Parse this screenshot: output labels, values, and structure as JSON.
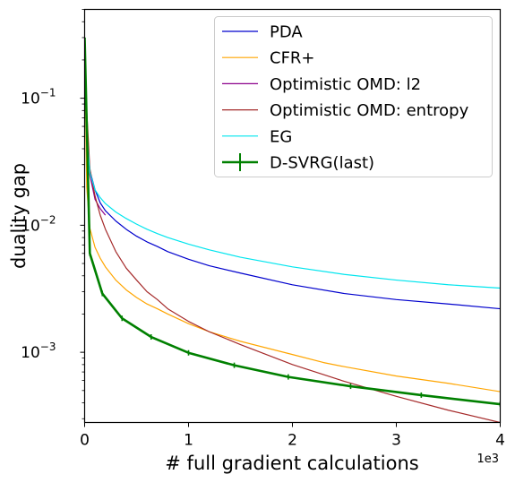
{
  "chart_data": {
    "type": "line",
    "xlabel": "# full gradient calculations",
    "ylabel": "duality gap",
    "x_offset_label": "1e3",
    "xlim": [
      0,
      4000
    ],
    "ylim": [
      0.00028,
      0.5
    ],
    "yscale": "log",
    "grid": false,
    "legend_position": "top-right",
    "x_ticks": [
      {
        "value": 0,
        "label": "0"
      },
      {
        "value": 1000,
        "label": "1"
      },
      {
        "value": 2000,
        "label": "2"
      },
      {
        "value": 3000,
        "label": "3"
      },
      {
        "value": 4000,
        "label": "4"
      }
    ],
    "y_ticks": [
      {
        "value": 0.001,
        "base": "10",
        "exp": "−3"
      },
      {
        "value": 0.01,
        "base": "10",
        "exp": "−2"
      },
      {
        "value": 0.1,
        "base": "10",
        "exp": "−1"
      }
    ],
    "series": [
      {
        "name": "PDA",
        "color": "#0000cd",
        "width": 1.2,
        "x": [
          0,
          20,
          50,
          100,
          150,
          200,
          300,
          400,
          500,
          600,
          700,
          800,
          1000,
          1200,
          1500,
          2000,
          2500,
          3000,
          3500,
          4000
        ],
        "y": [
          0.3,
          0.06,
          0.027,
          0.019,
          0.015,
          0.013,
          0.0108,
          0.0093,
          0.0082,
          0.0074,
          0.0068,
          0.0062,
          0.0054,
          0.0048,
          0.0042,
          0.0034,
          0.0029,
          0.0026,
          0.0024,
          0.0022
        ]
      },
      {
        "name": "CFR+",
        "color": "#ffa500",
        "width": 1.2,
        "x": [
          0,
          20,
          50,
          100,
          150,
          200,
          300,
          400,
          500,
          600,
          700,
          800,
          1000,
          1200,
          1500,
          2000,
          2300,
          2500,
          3000,
          3500,
          4000
        ],
        "y": [
          0.3,
          0.02,
          0.0095,
          0.0067,
          0.0055,
          0.0047,
          0.0037,
          0.0031,
          0.0027,
          0.0024,
          0.0022,
          0.002,
          0.00168,
          0.00145,
          0.00122,
          0.00096,
          0.00083,
          0.00077,
          0.00065,
          0.00057,
          0.00049
        ]
      },
      {
        "name": "Optimistic OMD: l2",
        "color": "#8b008b",
        "width": 1.2,
        "x": [
          0,
          10,
          20,
          50,
          100,
          150,
          200
        ],
        "y": [
          0.3,
          0.12,
          0.06,
          0.025,
          0.016,
          0.0135,
          0.012
        ]
      },
      {
        "name": "Optimistic OMD: entropy",
        "color": "#a52a2a",
        "width": 1.2,
        "x": [
          0,
          20,
          50,
          100,
          150,
          200,
          300,
          400,
          500,
          600,
          700,
          800,
          1000,
          1200,
          1500,
          2000,
          2500,
          3000,
          3500,
          4000
        ],
        "y": [
          0.3,
          0.08,
          0.028,
          0.017,
          0.012,
          0.0093,
          0.0062,
          0.0046,
          0.0037,
          0.003,
          0.0026,
          0.0022,
          0.00175,
          0.00145,
          0.00115,
          0.0008,
          0.00059,
          0.00045,
          0.00035,
          0.00028
        ]
      },
      {
        "name": "EG",
        "color": "#00e5ee",
        "width": 1.2,
        "x": [
          0,
          20,
          50,
          100,
          150,
          200,
          300,
          400,
          500,
          600,
          700,
          800,
          1000,
          1200,
          1500,
          2000,
          2500,
          3000,
          3500,
          4000
        ],
        "y": [
          0.3,
          0.055,
          0.026,
          0.019,
          0.0165,
          0.0148,
          0.0127,
          0.0113,
          0.0102,
          0.0093,
          0.0086,
          0.008,
          0.0071,
          0.0064,
          0.0056,
          0.0047,
          0.0041,
          0.0037,
          0.0034,
          0.0032
        ]
      },
      {
        "name": "D-SVRG(last)",
        "color": "#008000",
        "width": 2.6,
        "errorbar": true,
        "x": [
          0,
          50,
          170,
          360,
          640,
          1000,
          1440,
          1960,
          2560,
          3240,
          4000
        ],
        "y": [
          0.3,
          0.006,
          0.0029,
          0.00185,
          0.00132,
          0.00099,
          0.00079,
          0.00064,
          0.00054,
          0.00046,
          0.00039
        ]
      }
    ]
  }
}
